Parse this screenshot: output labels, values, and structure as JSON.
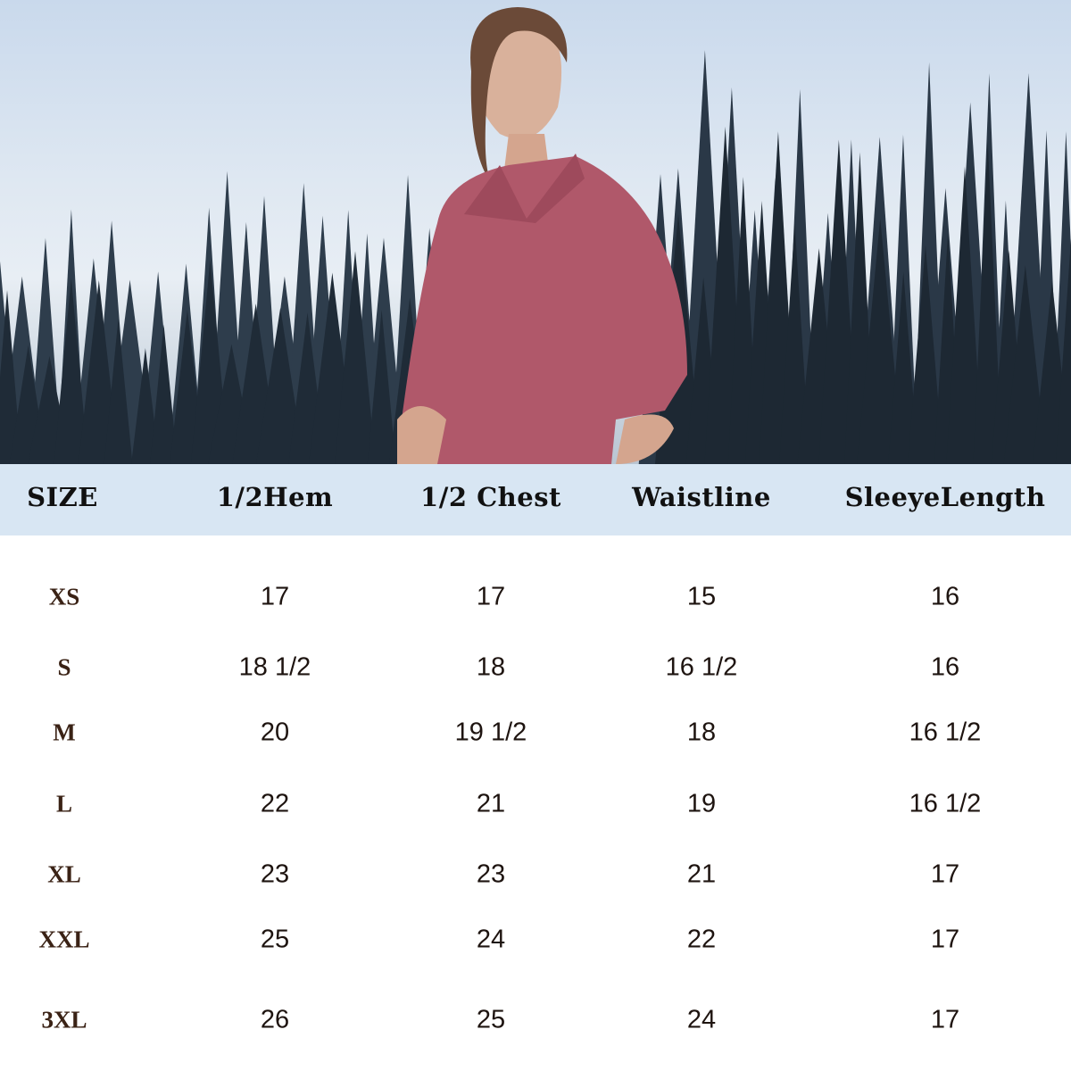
{
  "colors": {
    "header_bg": "#d8e6f3",
    "size_text": "#3a2215",
    "shirt": "#b0586a"
  },
  "table": {
    "headers": [
      "SIZE",
      "1/2Hem",
      "1/2 Chest",
      "Waistline",
      "SleeyeLength"
    ],
    "rows": [
      [
        "XS",
        "17",
        "17",
        "15",
        "16"
      ],
      [
        "S",
        "18 1/2",
        "18",
        "16 1/2",
        "16"
      ],
      [
        "M",
        "20",
        "19 1/2",
        "18",
        "16 1/2"
      ],
      [
        "L",
        "22",
        "21",
        "19",
        "16 1/2"
      ],
      [
        "XL",
        "23",
        "23",
        "21",
        "17"
      ],
      [
        "XXL",
        "25",
        "24",
        "22",
        "17"
      ],
      [
        "3XL",
        "26",
        "25",
        "24",
        "17"
      ]
    ]
  }
}
